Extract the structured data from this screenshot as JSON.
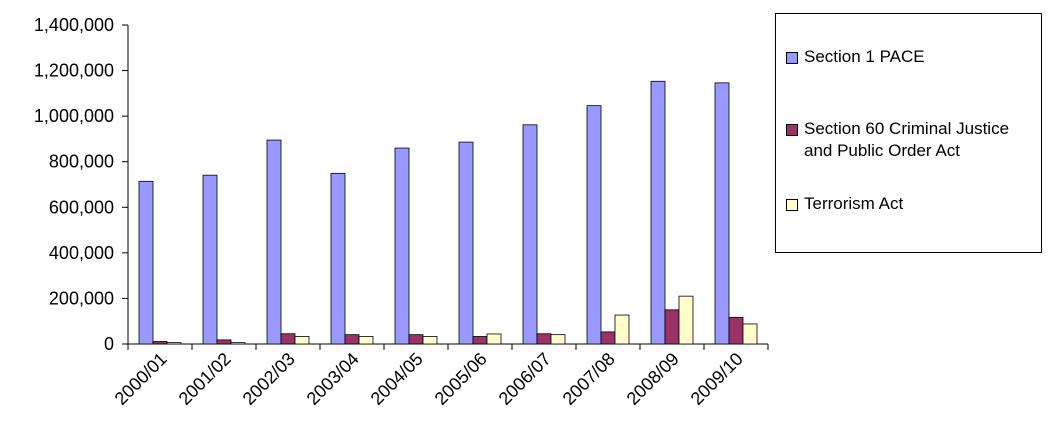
{
  "chart_data": {
    "type": "bar",
    "title": "",
    "xlabel": "",
    "ylabel": "",
    "categories": [
      "2000/01",
      "2001/02",
      "2002/03",
      "2003/04",
      "2004/05",
      "2005/06",
      "2006/07",
      "2007/08",
      "2008/09",
      "2009/10"
    ],
    "ylim": [
      0,
      1400000
    ],
    "yticks": [
      "0",
      "200,000",
      "400,000",
      "600,000",
      "800,000",
      "1,000,000",
      "1,200,000",
      "1,400,000"
    ],
    "ytick_values": [
      0,
      200000,
      400000,
      600000,
      800000,
      1000000,
      1200000,
      1400000
    ],
    "grid": false,
    "legend_position": "right",
    "series": [
      {
        "name": "Section 1 PACE",
        "color": "#9999ff",
        "values": [
          714000,
          741000,
          895000,
          749000,
          860000,
          886000,
          962000,
          1046000,
          1153000,
          1146000
        ]
      },
      {
        "name": "Section 60 Criminal Justice\nand Public Order Act",
        "color": "#993366",
        "values": [
          11000,
          18000,
          45000,
          41000,
          41000,
          33000,
          45000,
          53000,
          150000,
          117000
        ]
      },
      {
        "name": "Terrorism Act",
        "color": "#ffffcc",
        "values": [
          6000,
          6000,
          33000,
          33000,
          33000,
          44000,
          41000,
          127000,
          210000,
          88000
        ]
      }
    ]
  }
}
